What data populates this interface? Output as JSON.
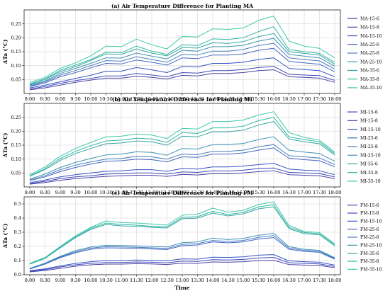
{
  "chart_data": [
    {
      "type": "line",
      "title": "(a) Air Temperature Difference for Planting MA",
      "ylabel": "ΔTa (°C)",
      "xlabel": "",
      "ylim": [
        0,
        0.3
      ],
      "yticks": [
        0.05,
        0.1,
        0.15,
        0.2,
        0.25
      ],
      "yticklabels": [
        "0.05",
        "0.10",
        "0.15",
        "0.20",
        "0.25"
      ],
      "grid": true,
      "legend": "right",
      "categories": [
        "8:00",
        "8:30",
        "9:00",
        "9:30",
        "10:00",
        "10:30",
        "11:00",
        "11:30",
        "12:00",
        "12:30",
        "13:00",
        "13:30",
        "14:00",
        "14:30",
        "15:00",
        "15:30",
        "16:00",
        "16:30",
        "17:00",
        "17:30",
        "18:00"
      ],
      "series": [
        {
          "name": "MA-15-6",
          "color": "#4a42a8",
          "values": [
            0.013,
            0.02,
            0.03,
            0.04,
            0.048,
            0.055,
            0.055,
            0.062,
            0.058,
            0.052,
            0.065,
            0.063,
            0.072,
            0.072,
            0.075,
            0.082,
            0.085,
            0.06,
            0.058,
            0.055,
            0.04
          ]
        },
        {
          "name": "MA-15-8",
          "color": "#3f48b8",
          "values": [
            0.016,
            0.025,
            0.036,
            0.046,
            0.054,
            0.063,
            0.063,
            0.072,
            0.066,
            0.06,
            0.075,
            0.073,
            0.082,
            0.082,
            0.086,
            0.093,
            0.097,
            0.069,
            0.066,
            0.064,
            0.047
          ]
        },
        {
          "name": "MA-15-10",
          "color": "#3553c6",
          "values": [
            0.02,
            0.03,
            0.042,
            0.054,
            0.065,
            0.08,
            0.08,
            0.093,
            0.085,
            0.075,
            0.097,
            0.095,
            0.108,
            0.108,
            0.112,
            0.122,
            0.128,
            0.09,
            0.086,
            0.082,
            0.06
          ]
        },
        {
          "name": "MA-25-6",
          "color": "#4367c2",
          "values": [
            0.025,
            0.038,
            0.06,
            0.075,
            0.092,
            0.108,
            0.106,
            0.12,
            0.112,
            0.102,
            0.128,
            0.125,
            0.138,
            0.138,
            0.142,
            0.155,
            0.162,
            0.115,
            0.11,
            0.105,
            0.078
          ]
        },
        {
          "name": "MA-25-8",
          "color": "#4a7cc0",
          "values": [
            0.027,
            0.042,
            0.066,
            0.082,
            0.1,
            0.118,
            0.116,
            0.132,
            0.122,
            0.112,
            0.14,
            0.138,
            0.152,
            0.152,
            0.158,
            0.172,
            0.18,
            0.128,
            0.122,
            0.117,
            0.088
          ]
        },
        {
          "name": "MA-25-10",
          "color": "#3e93b4",
          "values": [
            0.03,
            0.045,
            0.072,
            0.09,
            0.108,
            0.128,
            0.127,
            0.145,
            0.134,
            0.124,
            0.155,
            0.152,
            0.168,
            0.168,
            0.173,
            0.188,
            0.198,
            0.14,
            0.134,
            0.128,
            0.098
          ]
        },
        {
          "name": "MA-35-6",
          "color": "#34a5a3",
          "values": [
            0.032,
            0.05,
            0.078,
            0.096,
            0.118,
            0.142,
            0.14,
            0.16,
            0.145,
            0.135,
            0.165,
            0.163,
            0.182,
            0.18,
            0.186,
            0.204,
            0.215,
            0.15,
            0.144,
            0.138,
            0.105
          ]
        },
        {
          "name": "MA-35-8",
          "color": "#31b7a0",
          "values": [
            0.035,
            0.053,
            0.083,
            0.102,
            0.122,
            0.148,
            0.146,
            0.17,
            0.152,
            0.14,
            0.175,
            0.172,
            0.196,
            0.194,
            0.2,
            0.222,
            0.24,
            0.158,
            0.15,
            0.144,
            0.112
          ]
        },
        {
          "name": "MA-35-10",
          "color": "#3fc8a8",
          "values": [
            0.04,
            0.058,
            0.09,
            0.11,
            0.135,
            0.17,
            0.168,
            0.195,
            0.175,
            0.16,
            0.205,
            0.203,
            0.232,
            0.23,
            0.235,
            0.262,
            0.278,
            0.188,
            0.17,
            0.162,
            0.128
          ]
        }
      ]
    },
    {
      "type": "line",
      "title": "(b) Air Temperature Difference for Planting MI",
      "ylabel": "ΔTa (°C)",
      "xlabel": "",
      "ylim": [
        0,
        0.3
      ],
      "yticks": [
        0.05,
        0.1,
        0.15,
        0.2,
        0.25
      ],
      "yticklabels": [
        "0.05",
        "0.10",
        "0.15",
        "0.20",
        "0.25"
      ],
      "grid": true,
      "legend": "right",
      "categories": [
        "8:00",
        "8:30",
        "9:00",
        "9:30",
        "10:00",
        "10:30",
        "11:00",
        "11:30",
        "12:00",
        "12:30",
        "13:00",
        "13:30",
        "14:00",
        "14:30",
        "15:00",
        "15:30",
        "16:00",
        "16:30",
        "17:00",
        "17:30",
        "18:00"
      ],
      "series": [
        {
          "name": "MI-15-6",
          "color": "#4a42a8",
          "values": [
            0.01,
            0.016,
            0.024,
            0.03,
            0.034,
            0.038,
            0.04,
            0.042,
            0.042,
            0.038,
            0.045,
            0.043,
            0.048,
            0.047,
            0.05,
            0.055,
            0.058,
            0.044,
            0.042,
            0.04,
            0.03
          ]
        },
        {
          "name": "MI-15-8",
          "color": "#3f48b8",
          "values": [
            0.012,
            0.02,
            0.03,
            0.036,
            0.04,
            0.046,
            0.048,
            0.05,
            0.05,
            0.046,
            0.054,
            0.052,
            0.058,
            0.057,
            0.06,
            0.066,
            0.068,
            0.052,
            0.05,
            0.048,
            0.036
          ]
        },
        {
          "name": "MI-15-10",
          "color": "#3553c6",
          "values": [
            0.015,
            0.025,
            0.036,
            0.044,
            0.05,
            0.056,
            0.058,
            0.062,
            0.062,
            0.056,
            0.066,
            0.064,
            0.072,
            0.072,
            0.075,
            0.08,
            0.085,
            0.064,
            0.06,
            0.058,
            0.044
          ]
        },
        {
          "name": "MI-25-6",
          "color": "#4367c2",
          "values": [
            0.022,
            0.036,
            0.055,
            0.07,
            0.082,
            0.092,
            0.094,
            0.1,
            0.098,
            0.09,
            0.108,
            0.106,
            0.118,
            0.118,
            0.122,
            0.132,
            0.14,
            0.103,
            0.098,
            0.094,
            0.072
          ]
        },
        {
          "name": "MI-25-8",
          "color": "#4a7cc0",
          "values": [
            0.025,
            0.04,
            0.062,
            0.078,
            0.09,
            0.1,
            0.102,
            0.11,
            0.108,
            0.1,
            0.118,
            0.116,
            0.128,
            0.128,
            0.132,
            0.144,
            0.152,
            0.112,
            0.108,
            0.104,
            0.08
          ]
        },
        {
          "name": "MI-25-10",
          "color": "#3e93b4",
          "values": [
            0.028,
            0.046,
            0.07,
            0.088,
            0.102,
            0.115,
            0.118,
            0.126,
            0.124,
            0.114,
            0.138,
            0.136,
            0.152,
            0.152,
            0.156,
            0.17,
            0.18,
            0.132,
            0.125,
            0.12,
            0.092
          ]
        },
        {
          "name": "MI-35-6",
          "color": "#34a5a3",
          "values": [
            0.038,
            0.062,
            0.095,
            0.12,
            0.138,
            0.155,
            0.158,
            0.165,
            0.162,
            0.15,
            0.182,
            0.18,
            0.198,
            0.198,
            0.204,
            0.222,
            0.235,
            0.172,
            0.162,
            0.155,
            0.115
          ]
        },
        {
          "name": "MI-35-8",
          "color": "#31b7a0",
          "values": [
            0.04,
            0.066,
            0.102,
            0.128,
            0.148,
            0.165,
            0.168,
            0.175,
            0.172,
            0.16,
            0.195,
            0.192,
            0.212,
            0.212,
            0.218,
            0.238,
            0.25,
            0.18,
            0.17,
            0.162,
            0.12
          ]
        },
        {
          "name": "MI-35-10",
          "color": "#3fc8a8",
          "values": [
            0.044,
            0.072,
            0.11,
            0.138,
            0.16,
            0.18,
            0.182,
            0.19,
            0.186,
            0.174,
            0.21,
            0.208,
            0.235,
            0.235,
            0.24,
            0.258,
            0.27,
            0.195,
            0.178,
            0.168,
            0.125
          ]
        }
      ]
    },
    {
      "type": "line",
      "title": "(c) Air Temperature Difference for Planting FM",
      "ylabel": "ΔTa (°C)",
      "xlabel": "Time",
      "ylim": [
        0,
        0.55
      ],
      "yticks": [
        0,
        0.1,
        0.2,
        0.3,
        0.4,
        0.5
      ],
      "yticklabels": [
        "0.0",
        "0.1",
        "0.2",
        "0.3",
        "0.4",
        "0.5"
      ],
      "grid": true,
      "legend": "right",
      "categories": [
        "8:00",
        "8:30",
        "9:00",
        "9:30",
        "10:00",
        "10:30",
        "11:00",
        "11:30",
        "12:00",
        "12:30",
        "13:00",
        "13:30",
        "14:00",
        "14:30",
        "15:00",
        "15:30",
        "16:00",
        "16:30",
        "17:00",
        "17:30",
        "18:00"
      ],
      "series": [
        {
          "name": "FM-15-6",
          "color": "#4a42a8",
          "values": [
            0.02,
            0.03,
            0.045,
            0.06,
            0.07,
            0.075,
            0.075,
            0.078,
            0.076,
            0.072,
            0.082,
            0.08,
            0.09,
            0.088,
            0.092,
            0.1,
            0.102,
            0.072,
            0.068,
            0.065,
            0.05
          ]
        },
        {
          "name": "FM-15-8",
          "color": "#3f48b8",
          "values": [
            0.024,
            0.036,
            0.055,
            0.07,
            0.08,
            0.086,
            0.086,
            0.09,
            0.088,
            0.084,
            0.096,
            0.094,
            0.106,
            0.104,
            0.108,
            0.118,
            0.122,
            0.085,
            0.08,
            0.076,
            0.058
          ]
        },
        {
          "name": "FM-15-10",
          "color": "#3553c6",
          "values": [
            0.028,
            0.042,
            0.062,
            0.08,
            0.092,
            0.1,
            0.1,
            0.104,
            0.102,
            0.098,
            0.112,
            0.11,
            0.124,
            0.122,
            0.126,
            0.138,
            0.142,
            0.098,
            0.092,
            0.088,
            0.068
          ]
        },
        {
          "name": "FM-25-6",
          "color": "#4367c2",
          "values": [
            0.04,
            0.075,
            0.12,
            0.155,
            0.18,
            0.19,
            0.188,
            0.186,
            0.182,
            0.178,
            0.205,
            0.21,
            0.232,
            0.225,
            0.232,
            0.252,
            0.262,
            0.18,
            0.165,
            0.158,
            0.11
          ]
        },
        {
          "name": "FM-25-8",
          "color": "#4a7cc0",
          "values": [
            0.042,
            0.078,
            0.125,
            0.162,
            0.188,
            0.198,
            0.196,
            0.194,
            0.19,
            0.186,
            0.214,
            0.22,
            0.242,
            0.235,
            0.242,
            0.264,
            0.276,
            0.188,
            0.172,
            0.165,
            0.115
          ]
        },
        {
          "name": "FM-25-10",
          "color": "#3e93b4",
          "values": [
            0.045,
            0.082,
            0.13,
            0.17,
            0.196,
            0.208,
            0.206,
            0.204,
            0.2,
            0.196,
            0.226,
            0.232,
            0.258,
            0.248,
            0.256,
            0.278,
            0.292,
            0.198,
            0.18,
            0.172,
            0.12
          ]
        },
        {
          "name": "FM-35-6",
          "color": "#34a5a3",
          "values": [
            0.075,
            0.115,
            0.19,
            0.262,
            0.32,
            0.355,
            0.345,
            0.342,
            0.335,
            0.33,
            0.395,
            0.4,
            0.435,
            0.415,
            0.43,
            0.465,
            0.48,
            0.325,
            0.29,
            0.282,
            0.205
          ]
        },
        {
          "name": "FM-35-8",
          "color": "#31b7a0",
          "values": [
            0.078,
            0.118,
            0.195,
            0.268,
            0.328,
            0.365,
            0.355,
            0.35,
            0.342,
            0.338,
            0.405,
            0.41,
            0.448,
            0.425,
            0.44,
            0.478,
            0.495,
            0.335,
            0.298,
            0.29,
            0.212
          ]
        },
        {
          "name": "FM-35-10",
          "color": "#3fc8a8",
          "values": [
            0.08,
            0.122,
            0.2,
            0.275,
            0.335,
            0.38,
            0.368,
            0.365,
            0.358,
            0.35,
            0.42,
            0.428,
            0.47,
            0.442,
            0.455,
            0.495,
            0.515,
            0.348,
            0.305,
            0.298,
            0.218
          ]
        }
      ]
    }
  ]
}
